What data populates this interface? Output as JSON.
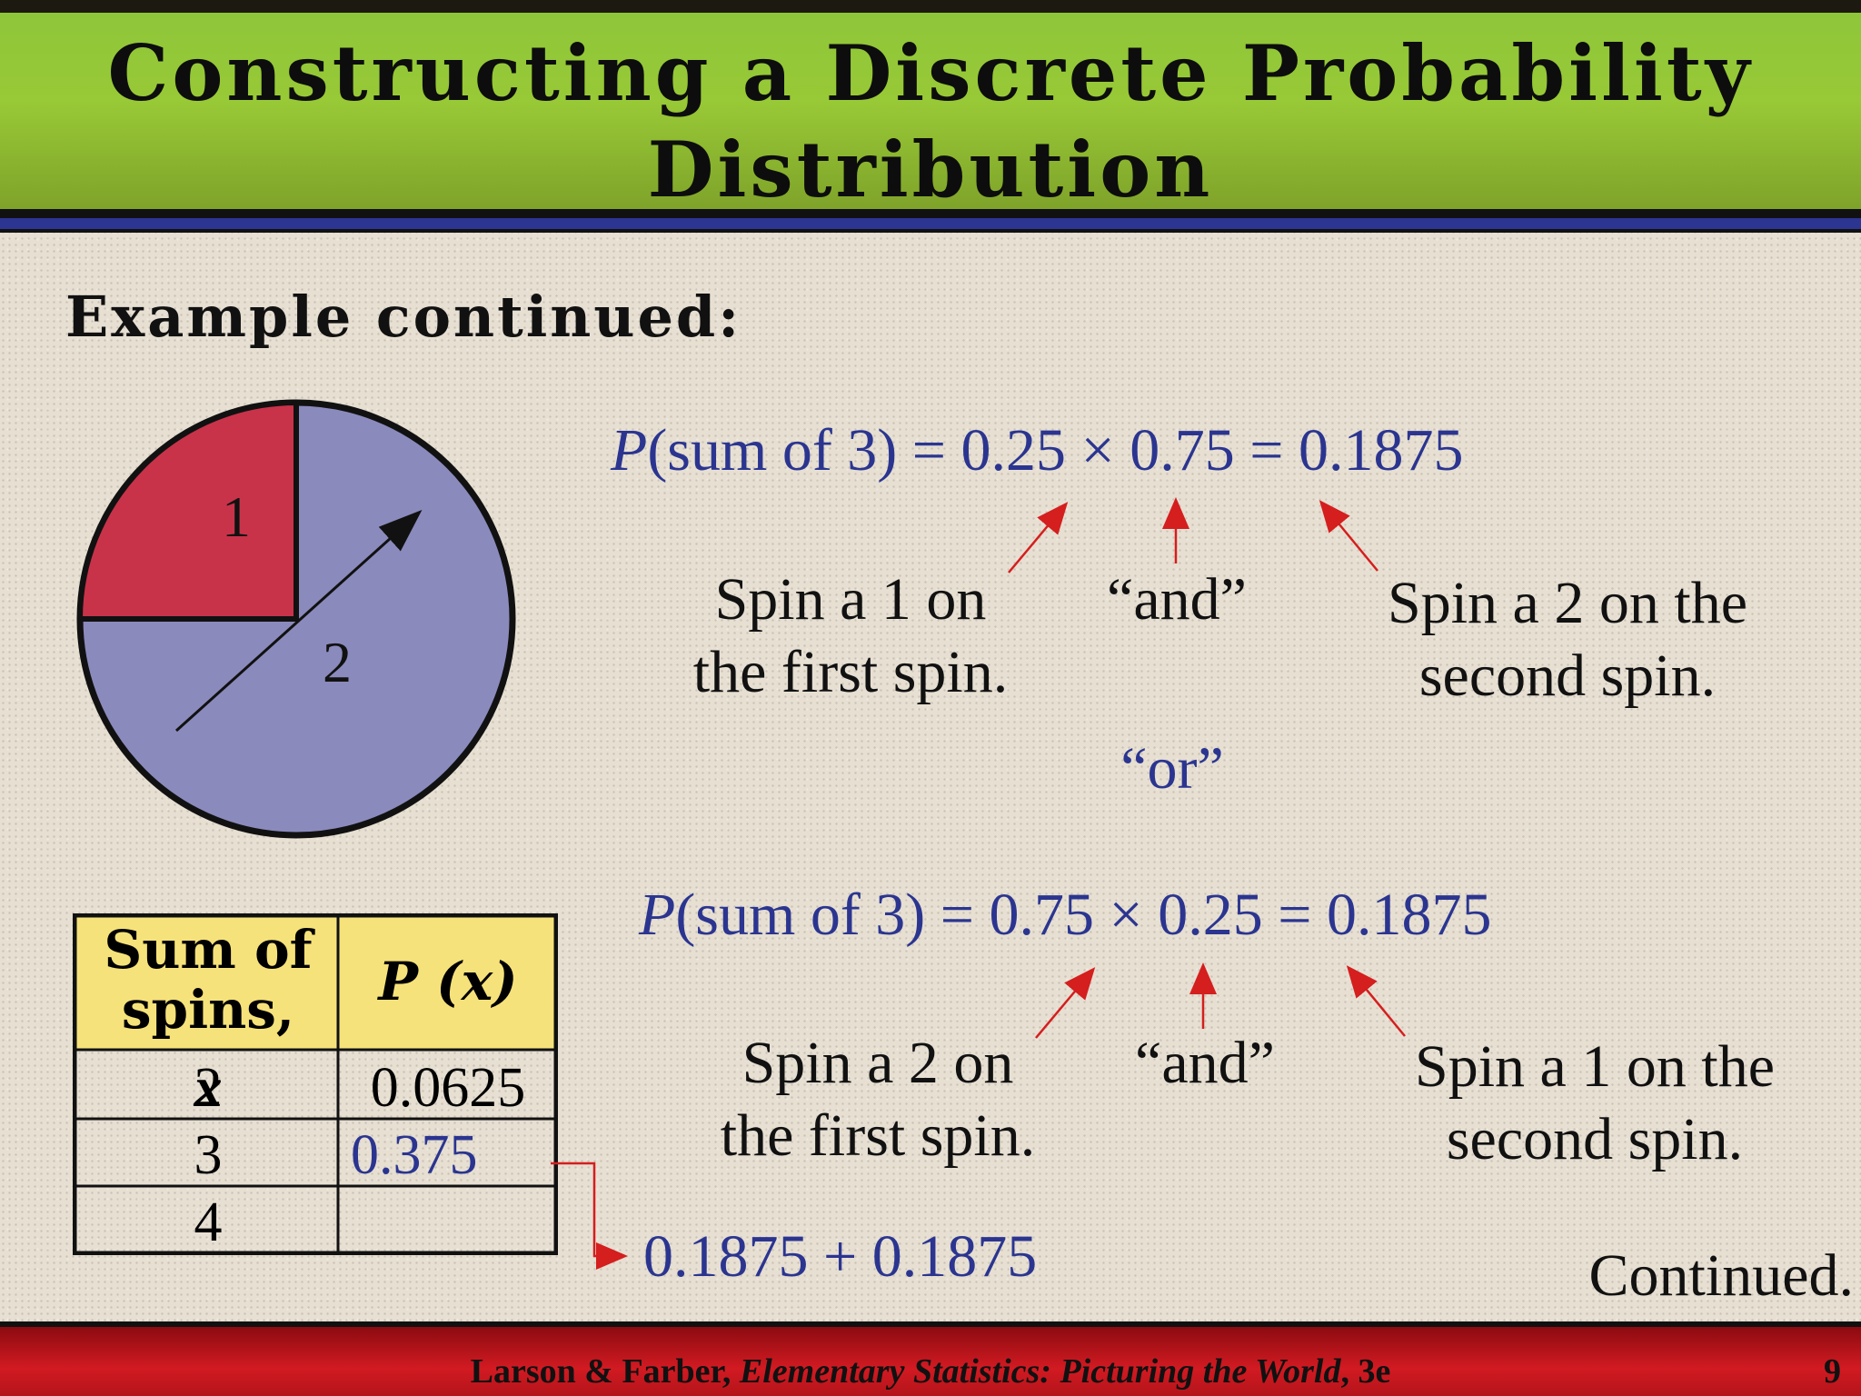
{
  "slide": {
    "title_line1": "Constructing a Discrete Probability",
    "title_line2": "Distribution",
    "subhead": "Example continued:",
    "spinner": {
      "label_1": "1",
      "label_2": "2",
      "color_1": "#c8334a",
      "color_2": "#8a8abd"
    },
    "eq1": {
      "p": "P",
      "text": "(sum of 3) = 0.25 ×  0.75 = 0.1875"
    },
    "eq1_notes": {
      "left_line1": "Spin a 1 on",
      "left_line2": "the first spin.",
      "mid": "“and”",
      "right_line1": "Spin a 2 on the",
      "right_line2": "second spin."
    },
    "or_text": "“or”",
    "eq2": {
      "p": "P",
      "text": "(sum of 3) = 0.75 ×  0.25 = 0.1875"
    },
    "eq2_notes": {
      "left_line1": "Spin a 2 on",
      "left_line2": "the first spin.",
      "mid": "“and”",
      "right_line1": "Spin a 1 on the",
      "right_line2": "second spin."
    },
    "table": {
      "header_x_line1": "Sum of",
      "header_x_line2": "spins,",
      "header_x_var": "x",
      "header_p": "P (x)",
      "rows": [
        {
          "x": "2",
          "p": "0.0625"
        },
        {
          "x": "3",
          "p": "0.375"
        },
        {
          "x": "4",
          "p": ""
        }
      ]
    },
    "sum_expression": "0.1875 + 0.1875",
    "continued": "Continued.",
    "footer_authors": "Larson & Farber, ",
    "footer_book": "Elementary Statistics: Picturing the World",
    "footer_edition": ", 3e",
    "page_number": "9"
  }
}
